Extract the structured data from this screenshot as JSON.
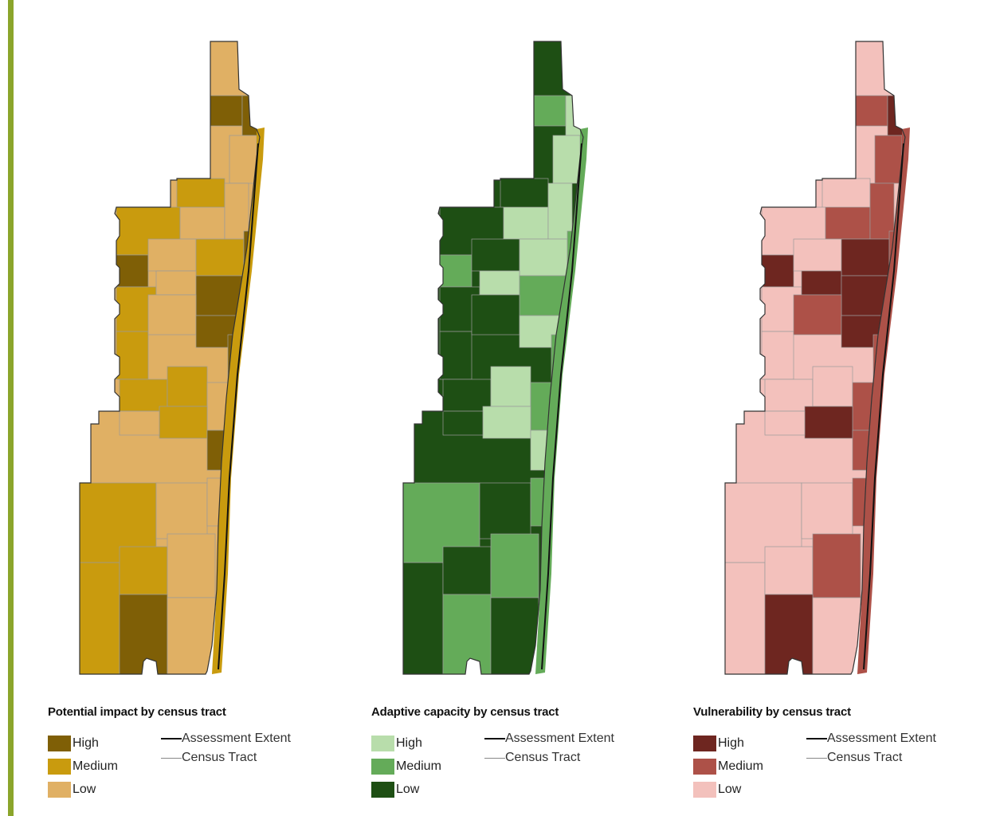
{
  "panels": [
    {
      "id": "impact",
      "title": "Potential impact by census tract",
      "classes": [
        {
          "label": "High",
          "color": "#7f5f06"
        },
        {
          "label": "Medium",
          "color": "#c99b0e"
        },
        {
          "label": "Low",
          "color": "#e0b064"
        }
      ],
      "line_legend": [
        {
          "label": "Assessment Extent",
          "style": "thick"
        },
        {
          "label": "Census Tract",
          "style": "thin"
        }
      ]
    },
    {
      "id": "adaptive",
      "title": "Adaptive capacity by census tract",
      "classes": [
        {
          "label": "High",
          "color": "#b8ddab"
        },
        {
          "label": "Medium",
          "color": "#64ab59"
        },
        {
          "label": "Low",
          "color": "#1e4f14"
        }
      ],
      "line_legend": [
        {
          "label": "Assessment Extent",
          "style": "thick"
        },
        {
          "label": "Census Tract",
          "style": "thin"
        }
      ]
    },
    {
      "id": "vulnerability",
      "title": "Vulnerability by census tract",
      "classes": [
        {
          "label": "High",
          "color": "#6e2620"
        },
        {
          "label": "Medium",
          "color": "#ad5148"
        },
        {
          "label": "Low",
          "color": "#f3c1bc"
        }
      ],
      "line_legend": [
        {
          "label": "Assessment Extent",
          "style": "thick"
        },
        {
          "label": "Census Tract",
          "style": "thin"
        }
      ]
    }
  ],
  "accent_color": "#8ba52b"
}
